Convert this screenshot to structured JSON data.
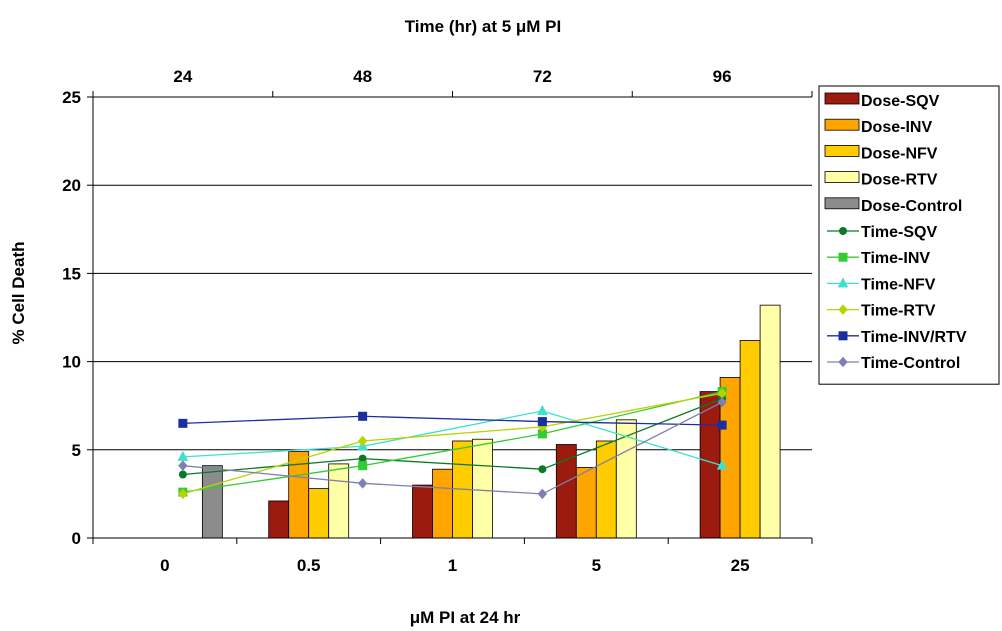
{
  "chart_data": {
    "type": "bar",
    "top_axis_title": "Time (hr) at 5 μM PI",
    "bottom_axis_title": "μM PI at 24 hr",
    "ylabel": "% Cell Death",
    "ylim": [
      0,
      25
    ],
    "yticks": [
      "0",
      "5",
      "10",
      "15",
      "20",
      "25"
    ],
    "grid": true,
    "legend_position": "right",
    "dose_categories": [
      "0",
      "0.5",
      "1",
      "5",
      "25"
    ],
    "time_ticks": [
      "24",
      "48",
      "72",
      "96"
    ],
    "dose_series": [
      {
        "name": "Dose-SQV",
        "color": "#9b1b0e",
        "values": [
          null,
          2.1,
          3.0,
          5.3,
          8.3
        ]
      },
      {
        "name": "Dose-INV",
        "color": "#ffa500",
        "values": [
          null,
          4.9,
          3.9,
          4.0,
          9.1
        ]
      },
      {
        "name": "Dose-NFV",
        "color": "#ffcc00",
        "values": [
          null,
          2.8,
          5.5,
          5.5,
          11.2
        ]
      },
      {
        "name": "Dose-RTV",
        "color": "#ffffa8",
        "values": [
          null,
          4.2,
          5.6,
          6.7,
          13.2
        ]
      },
      {
        "name": "Dose-Control",
        "color": "#8c8c8c",
        "values": [
          4.1,
          null,
          null,
          null,
          null
        ]
      }
    ],
    "time_series": [
      {
        "name": "Time-SQV",
        "color": "#0a7a2a",
        "marker": "circle",
        "values": [
          3.6,
          4.5,
          3.9,
          7.9
        ]
      },
      {
        "name": "Time-INV",
        "color": "#33cc33",
        "marker": "square",
        "values": [
          2.6,
          4.1,
          5.9,
          8.3
        ]
      },
      {
        "name": "Time-NFV",
        "color": "#40e0d0",
        "marker": "triangle",
        "values": [
          4.6,
          5.2,
          7.2,
          4.1
        ]
      },
      {
        "name": "Time-RTV",
        "color": "#b8d400",
        "marker": "diamond",
        "values": [
          2.5,
          5.5,
          6.3,
          8.2
        ]
      },
      {
        "name": "Time-INV/RTV",
        "color": "#1a2fa0",
        "marker": "square",
        "values": [
          6.5,
          6.9,
          6.6,
          6.4
        ]
      },
      {
        "name": "Time-Control",
        "color": "#7f7fb0",
        "marker": "diamond",
        "values": [
          4.1,
          3.1,
          2.5,
          7.7
        ]
      }
    ]
  }
}
